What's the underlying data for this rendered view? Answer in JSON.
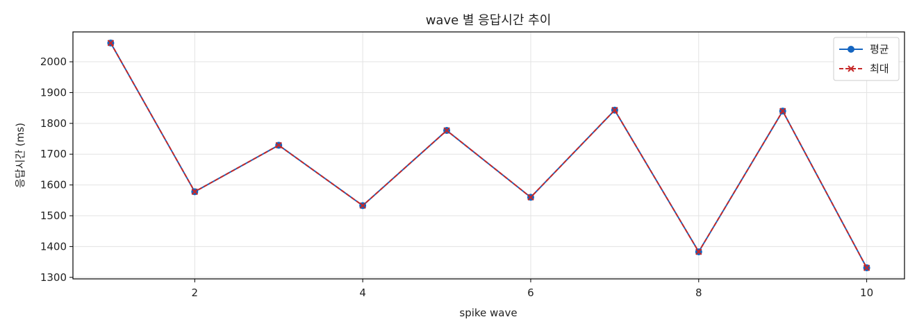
{
  "chart_data": {
    "type": "line",
    "title": "wave 별 응답시간 추이",
    "xlabel": "spike wave",
    "ylabel": "응답시간 (ms)",
    "x": [
      1,
      2,
      3,
      4,
      5,
      6,
      7,
      8,
      9,
      10
    ],
    "xticks": [
      2,
      4,
      6,
      8,
      10
    ],
    "yticks": [
      1300,
      1400,
      1500,
      1600,
      1700,
      1800,
      1900,
      2000
    ],
    "xlim": [
      0.55,
      10.45
    ],
    "ylim": [
      1295,
      2097
    ],
    "grid": true,
    "legend_position": "top-right",
    "series": [
      {
        "name": "평균",
        "color": "#1565c0",
        "style": "solid",
        "marker": "circle",
        "values": [
          2061,
          1578,
          1729,
          1533,
          1777,
          1560,
          1843,
          1383,
          1840,
          1331
        ]
      },
      {
        "name": "최대",
        "color": "#c62828",
        "style": "dashed",
        "marker": "x",
        "values": [
          2061,
          1578,
          1729,
          1533,
          1777,
          1560,
          1843,
          1383,
          1840,
          1331
        ]
      }
    ]
  }
}
